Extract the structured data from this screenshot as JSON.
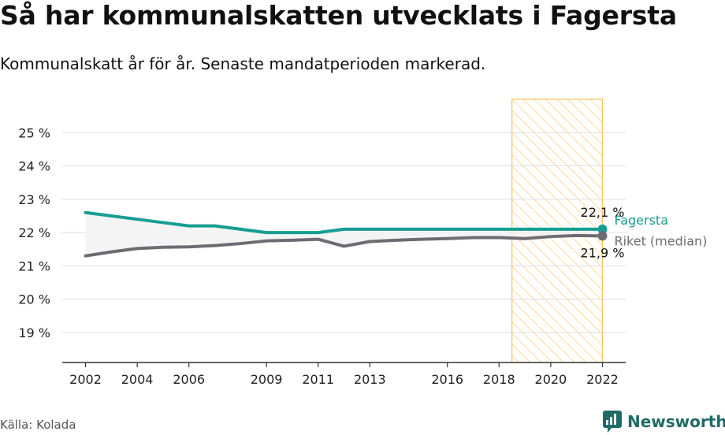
{
  "header": {
    "title": "Så har kommunalskatten utvecklats i Fagersta",
    "subtitle": "Kommunalskatt år för år. Senaste mandatperioden markerad."
  },
  "footer": {
    "source": "Källa: Kolada",
    "brand": "Newsworthy",
    "brand_icon": "newsworthy-logo-icon"
  },
  "colors": {
    "fagersta": "#159e91",
    "riket": "#6e6b73",
    "highlight": "#f5c35a",
    "grid": "#dddddd",
    "brand": "#1f6b66"
  },
  "chart_data": {
    "type": "line",
    "xlim": [
      2001.1,
      2022.9
    ],
    "ylim": [
      18.1,
      26
    ],
    "x_ticks": [
      2002,
      2004,
      2006,
      2009,
      2011,
      2013,
      2016,
      2018,
      2020,
      2022
    ],
    "y_ticks": [
      19,
      20,
      21,
      22,
      23,
      24,
      25
    ],
    "y_tick_labels": [
      "19 %",
      "20 %",
      "21 %",
      "22 %",
      "23 %",
      "24 %",
      "25 %"
    ],
    "highlight_range": [
      2018.5,
      2022
    ],
    "grid": true,
    "series": [
      {
        "name": "Fagersta",
        "color": "#159e91",
        "end_label": "22,1 %",
        "points": [
          [
            2002,
            22.6
          ],
          [
            2003,
            22.5
          ],
          [
            2004,
            22.4
          ],
          [
            2005,
            22.3
          ],
          [
            2006,
            22.2
          ],
          [
            2007,
            22.2
          ],
          [
            2008,
            22.1
          ],
          [
            2009,
            22.0
          ],
          [
            2010,
            22.0
          ],
          [
            2011,
            22.0
          ],
          [
            2012,
            22.1
          ],
          [
            2013,
            22.1
          ],
          [
            2014,
            22.1
          ],
          [
            2015,
            22.1
          ],
          [
            2016,
            22.1
          ],
          [
            2017,
            22.1
          ],
          [
            2018,
            22.1
          ],
          [
            2019,
            22.1
          ],
          [
            2020,
            22.1
          ],
          [
            2021,
            22.1
          ],
          [
            2022,
            22.1
          ]
        ]
      },
      {
        "name": "Riket (median)",
        "color": "#6e6b73",
        "end_label": "21,9 %",
        "points": [
          [
            2002,
            21.3
          ],
          [
            2003,
            21.42
          ],
          [
            2004,
            21.52
          ],
          [
            2005,
            21.56
          ],
          [
            2006,
            21.57
          ],
          [
            2007,
            21.61
          ],
          [
            2008,
            21.67
          ],
          [
            2009,
            21.75
          ],
          [
            2010,
            21.77
          ],
          [
            2011,
            21.8
          ],
          [
            2012,
            21.59
          ],
          [
            2013,
            21.73
          ],
          [
            2014,
            21.77
          ],
          [
            2015,
            21.8
          ],
          [
            2016,
            21.82
          ],
          [
            2017,
            21.85
          ],
          [
            2018,
            21.85
          ],
          [
            2019,
            21.82
          ],
          [
            2020,
            21.88
          ],
          [
            2021,
            21.91
          ],
          [
            2022,
            21.9
          ]
        ]
      }
    ]
  }
}
